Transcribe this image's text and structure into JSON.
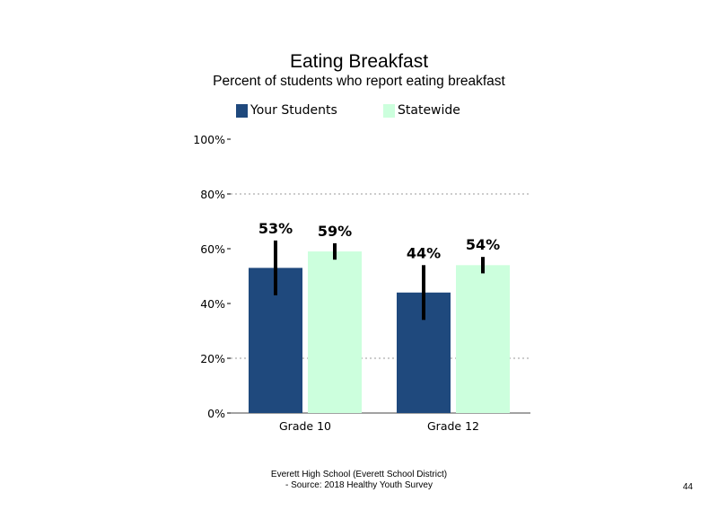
{
  "chart_data": {
    "type": "bar",
    "title": "Eating Breakfast",
    "subtitle": "Percent of students who report eating breakfast",
    "categories": [
      "Grade 10",
      "Grade 12"
    ],
    "series": [
      {
        "name": "Your Students",
        "color": "#1F497D",
        "values": [
          53,
          44
        ],
        "error_low": [
          43,
          34
        ],
        "error_high": [
          63,
          54
        ]
      },
      {
        "name": "Statewide",
        "color": "#CCFFDD",
        "values": [
          59,
          54
        ],
        "error_low": [
          56,
          51
        ],
        "error_high": [
          62,
          57
        ]
      }
    ],
    "data_labels": [
      [
        "53%",
        "44%"
      ],
      [
        "59%",
        "54%"
      ]
    ],
    "y_ticks": [
      0,
      20,
      40,
      60,
      80,
      100
    ],
    "y_tick_labels": [
      "0%",
      "20%",
      "40%",
      "60%",
      "80%",
      "100%"
    ],
    "ylim": [
      0,
      100
    ],
    "gridlines": [
      20,
      80
    ],
    "legend_position": "top"
  },
  "footer": {
    "line1": "Everett High School (Everett School District)",
    "line2": "- Source: 2018 Healthy Youth Survey"
  },
  "page_number": "44"
}
